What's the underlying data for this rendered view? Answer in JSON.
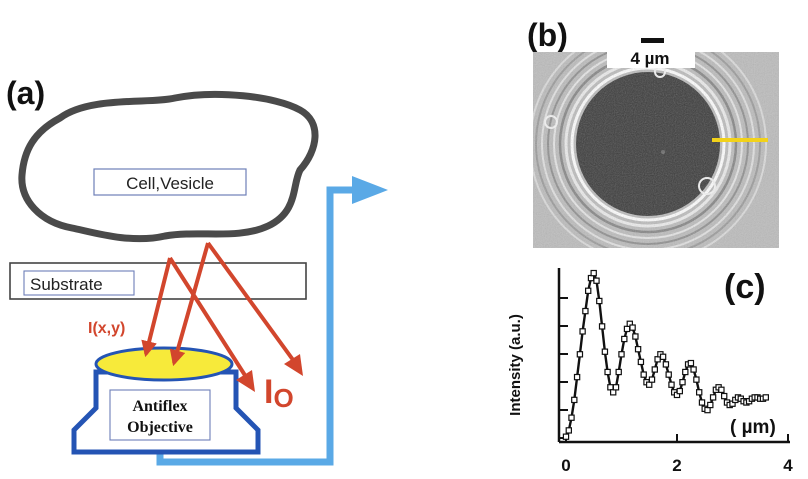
{
  "panels": {
    "a": {
      "label": "(a)",
      "cell_label": "Cell,Vesicle",
      "substrate_label": "Substrate",
      "reflected_label": "I(x,y)",
      "incident_label": "I",
      "incident_subscript": "O",
      "objective_line1": "Antiflex",
      "objective_line2": "Objective"
    },
    "b": {
      "label": "(b)",
      "scale_label": "4 µm"
    },
    "c": {
      "label": "(c)",
      "y_axis_label": "Intensity (a.u.)",
      "x_unit_label": "( µm)"
    }
  },
  "colors": {
    "cell_outline": "#4a4a4a",
    "arrow_red": "#d2462d",
    "light_path_blue": "#5aa9e6",
    "objective_blue": "#2454b4",
    "lens_yellow": "#f7ea3a",
    "profile_line_yellow": "#f2d21a"
  },
  "chart_data": {
    "type": "line",
    "title": "",
    "xlabel": "( µm)",
    "ylabel": "Intensity (a.u.)",
    "xlim": [
      0,
      4
    ],
    "x_ticks": [
      0,
      2,
      4
    ],
    "markers": "open-square",
    "series": [
      {
        "x": [
          0.0,
          0.05,
          0.1,
          0.15,
          0.2,
          0.25,
          0.3,
          0.35,
          0.4,
          0.45,
          0.5,
          0.55,
          0.6,
          0.65,
          0.7,
          0.75,
          0.8,
          0.85,
          0.9,
          0.95,
          1.0,
          1.05,
          1.1,
          1.15,
          1.2,
          1.25,
          1.3,
          1.35,
          1.4,
          1.45,
          1.5,
          1.55,
          1.6,
          1.65,
          1.7,
          1.75,
          1.8,
          1.85,
          1.9,
          1.95,
          2.0,
          2.05,
          2.1,
          2.15,
          2.2,
          2.25,
          2.3,
          2.35,
          2.4,
          2.45,
          2.5,
          2.55,
          2.6,
          2.65,
          2.7,
          2.75,
          2.8,
          2.85,
          2.9,
          2.95,
          3.0,
          3.05,
          3.1,
          3.15,
          3.2,
          3.25,
          3.3,
          3.35,
          3.4,
          3.45,
          3.5,
          3.55,
          3.6
        ],
        "y": [
          0.05,
          0.3,
          0.8,
          1.5,
          2.4,
          3.3,
          4.2,
          5.0,
          5.8,
          6.3,
          6.5,
          6.2,
          5.4,
          4.4,
          3.4,
          2.6,
          2.0,
          1.8,
          2.0,
          2.6,
          3.3,
          3.9,
          4.3,
          4.5,
          4.35,
          4.0,
          3.5,
          3.0,
          2.5,
          2.2,
          2.1,
          2.3,
          2.7,
          3.1,
          3.3,
          3.2,
          2.9,
          2.5,
          2.1,
          1.8,
          1.7,
          1.85,
          2.2,
          2.6,
          2.9,
          2.95,
          2.7,
          2.3,
          1.8,
          1.4,
          1.15,
          1.1,
          1.3,
          1.6,
          1.9,
          2.0,
          1.9,
          1.65,
          1.4,
          1.3,
          1.35,
          1.5,
          1.6,
          1.55,
          1.45,
          1.4,
          1.45,
          1.55,
          1.6,
          1.6,
          1.55,
          1.55,
          1.6
        ]
      }
    ]
  }
}
